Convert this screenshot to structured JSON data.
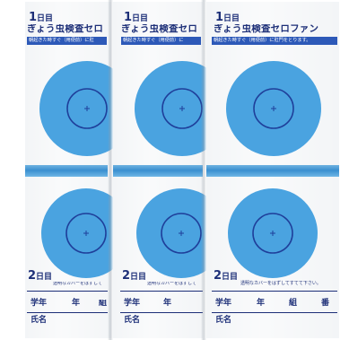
{
  "sheets": [
    {
      "day1_number": "1",
      "day1_unit": "日目",
      "title": "ぎょう虫検査セロ",
      "instruction": "朝起きた時すぐ（用便前）に肛",
      "day2_number": "2",
      "day2_unit": "日目",
      "day2_note": "透明なカバーをはずして",
      "field_grade": "学年",
      "field_year": "年",
      "field_class": "組",
      "field_number": "",
      "field_name": "氏名"
    },
    {
      "day1_number": "1",
      "day1_unit": "日目",
      "title": "ぎょう虫検査セロ",
      "instruction": "朝起きた時すぐ（用便前）に",
      "day2_number": "2",
      "day2_unit": "日目",
      "day2_note": "透明なカバーをはずして",
      "field_grade": "学年",
      "field_year": "年",
      "field_class": "",
      "field_number": "",
      "field_name": "氏名"
    },
    {
      "day1_number": "1",
      "day1_unit": "日目",
      "title": "ぎょう虫検査セロファン",
      "instruction": "朝起きた時すぐ（用便前）に肛門をとります。",
      "day2_number": "2",
      "day2_unit": "日目",
      "day2_note": "透明なカバーをはずしてすてて下さい。",
      "field_grade": "学年",
      "field_year": "年",
      "field_class": "組",
      "field_number": "番",
      "field_name": "氏名"
    }
  ],
  "colors": {
    "ink": "#1d2f78",
    "target_fill": "#4aa3e0",
    "target_ring": "#1f3f9a",
    "tape": "#3a8fd0"
  }
}
